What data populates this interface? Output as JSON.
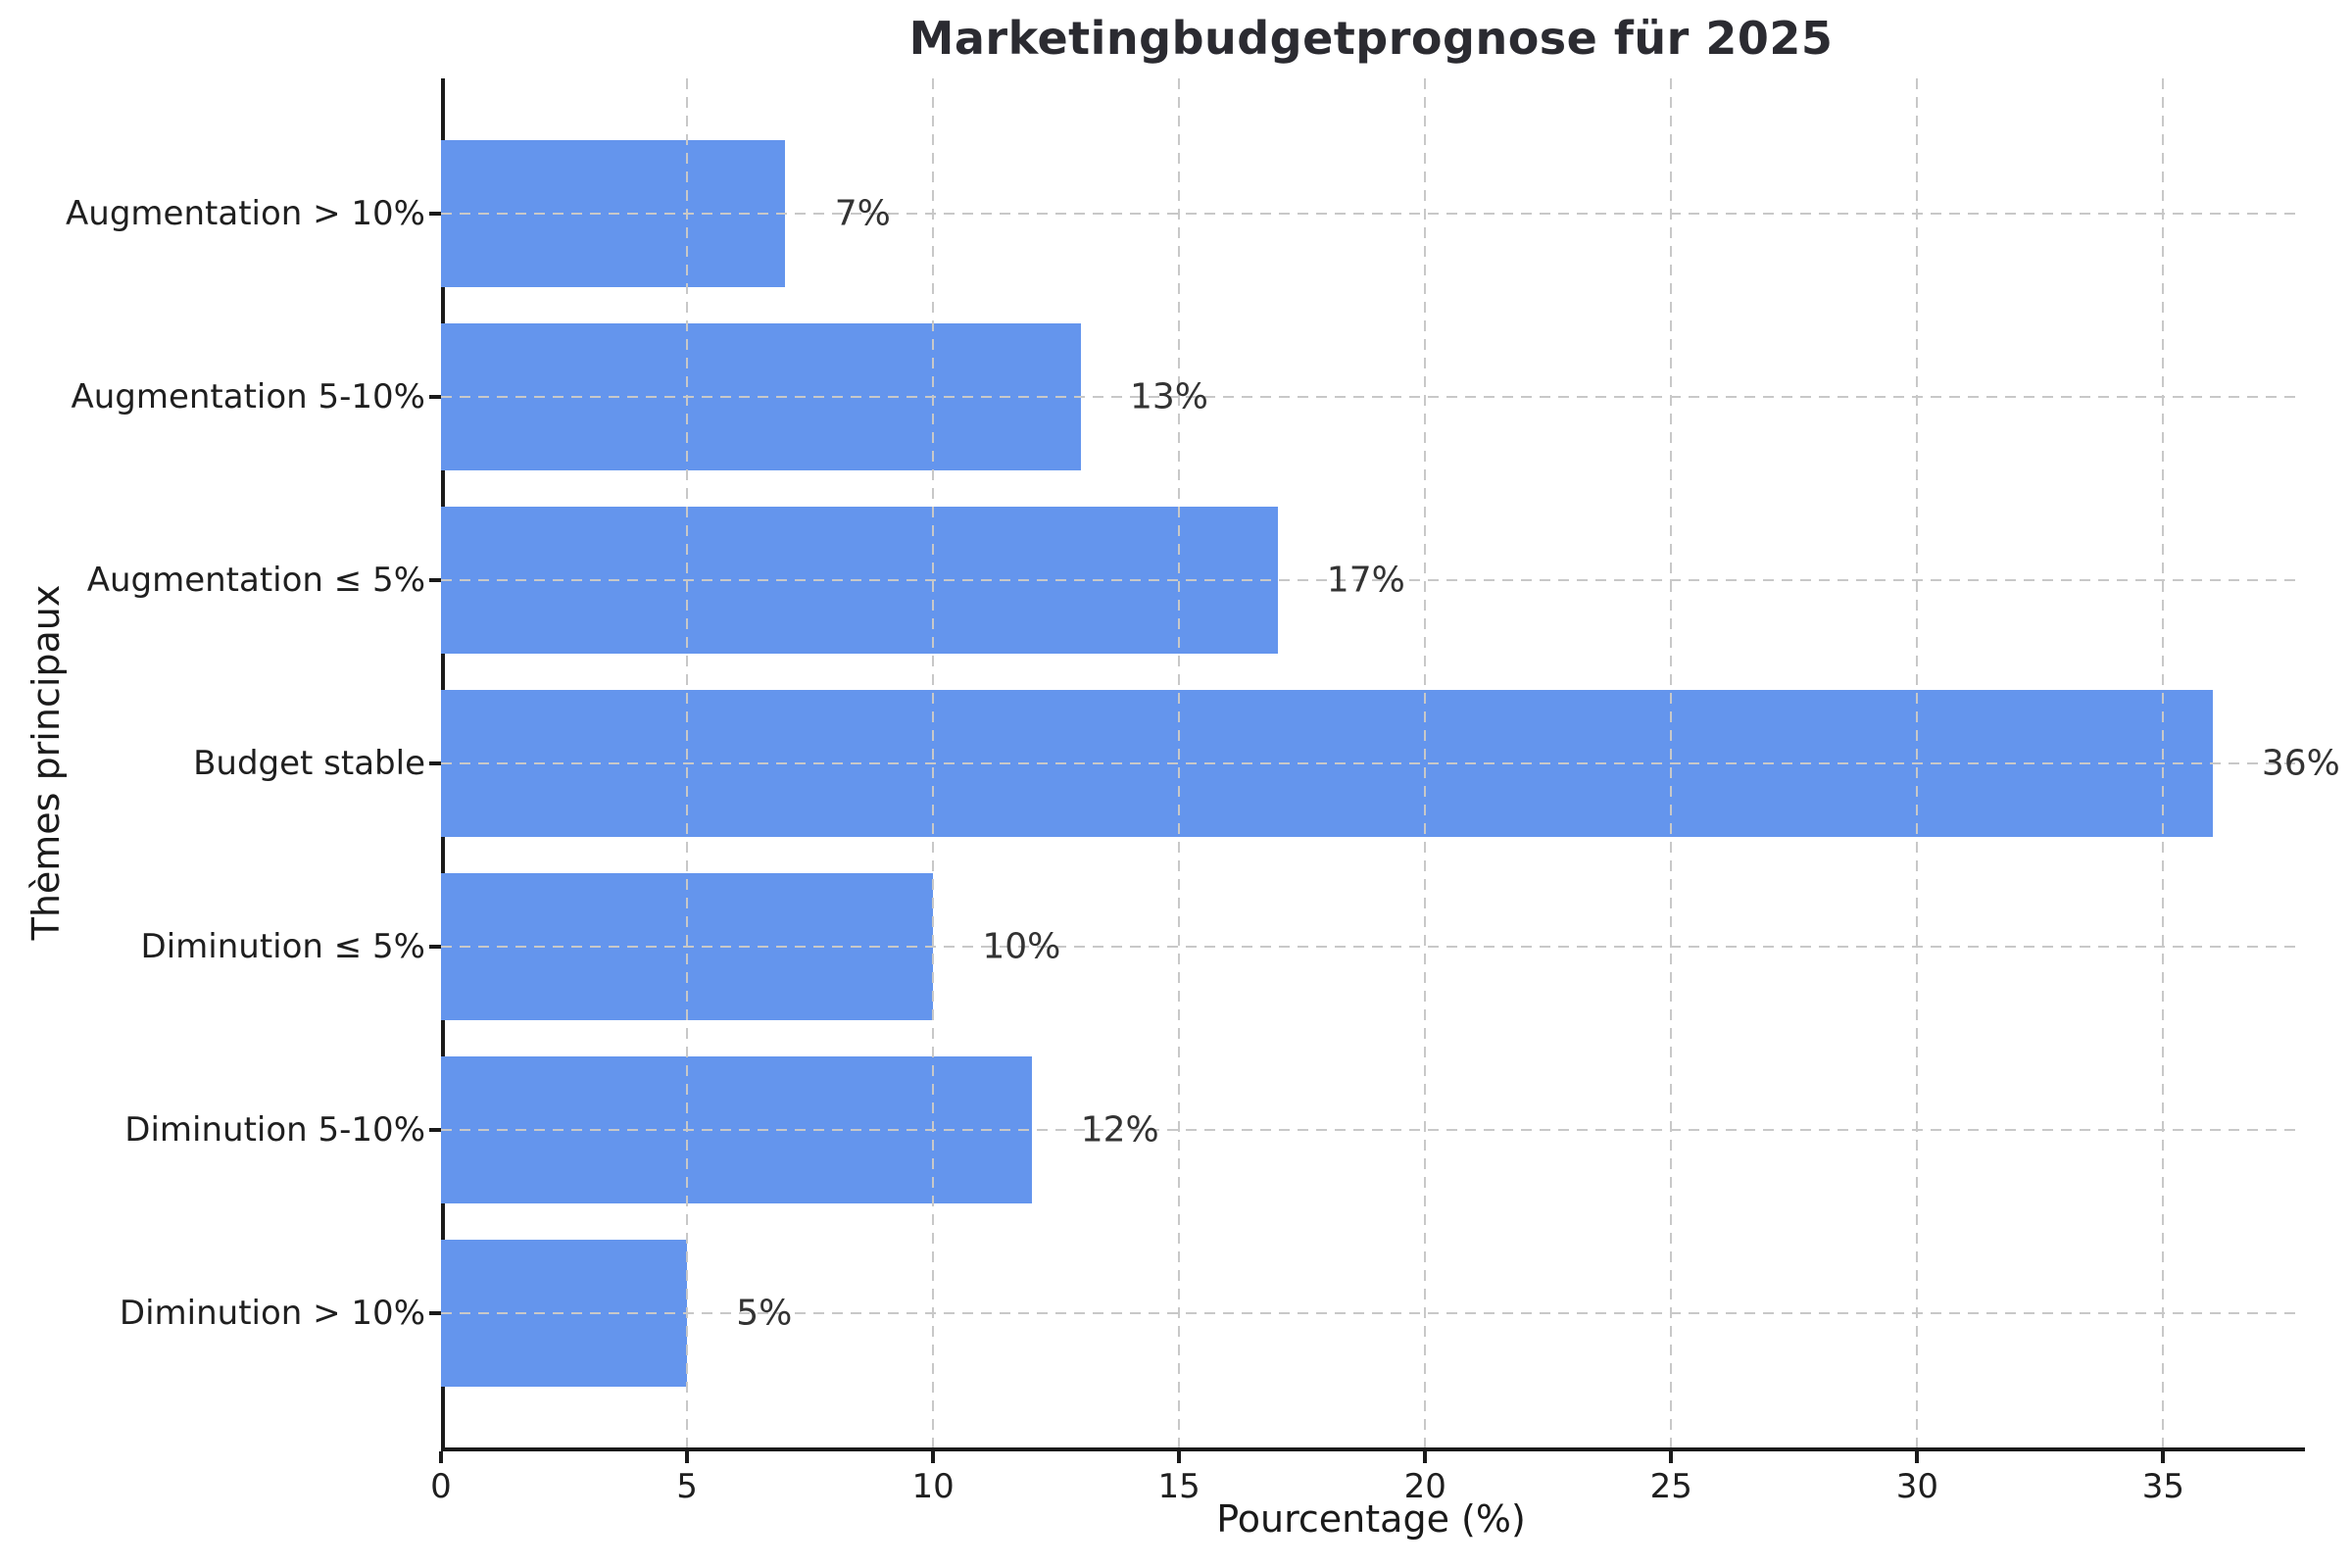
{
  "chart_data": {
    "type": "bar",
    "orientation": "horizontal",
    "title": "Marketingbudgetprognose für 2025",
    "xlabel": "Pourcentage (%)",
    "ylabel": "Thèmes principaux",
    "categories": [
      "Augmentation > 10%",
      "Augmentation 5-10%",
      "Augmentation ≤ 5%",
      "Budget stable",
      "Diminution ≤ 5%",
      "Diminution 5-10%",
      "Diminution > 10%"
    ],
    "values": [
      7,
      13,
      17,
      36,
      10,
      12,
      5
    ],
    "value_labels": [
      "7%",
      "13%",
      "17%",
      "36%",
      "10%",
      "12%",
      "5%"
    ],
    "x_ticks": [
      0,
      5,
      10,
      15,
      20,
      25,
      30,
      35
    ],
    "xlim": [
      0,
      37.8
    ],
    "value_label_offset": 1,
    "grid": "dashed, both axes, drawn over bars",
    "legend": "none",
    "colors": {
      "bar": "#6495ed",
      "grid": "#c8c8c8",
      "spine": "#1a1a1a",
      "tick_text": "#1f1f1f",
      "value_text": "#333333",
      "title_text": "#2b2b31"
    }
  }
}
